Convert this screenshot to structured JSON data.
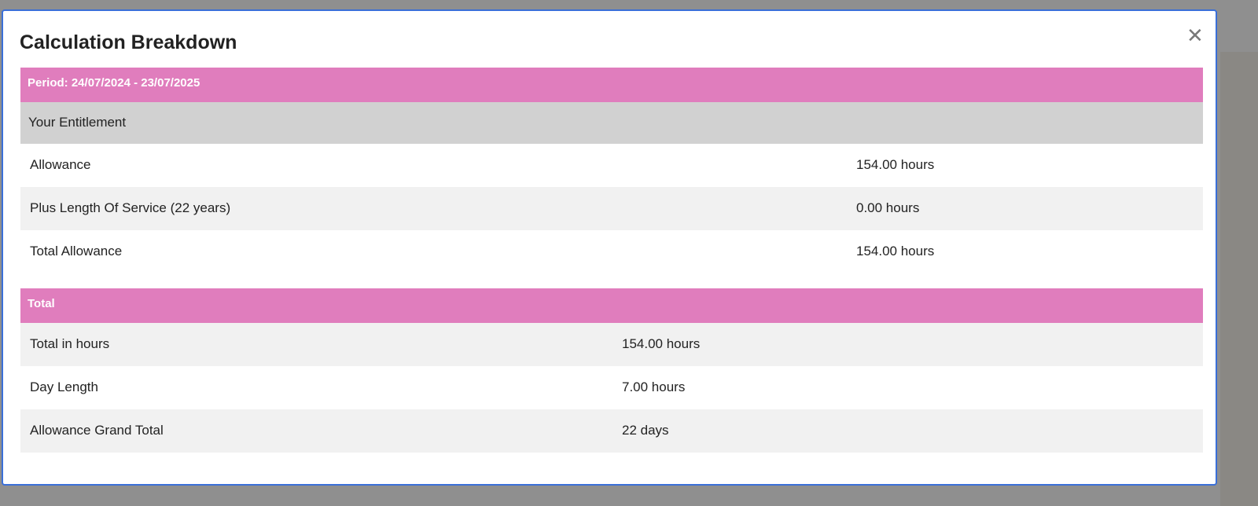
{
  "modal": {
    "title": "Calculation Breakdown",
    "close_icon": "close-icon"
  },
  "entitlement": {
    "period": "Period: 24/07/2024 - 23/07/2025",
    "section": "Your Entitlement",
    "rows": [
      {
        "label": "Allowance",
        "value": "154.00 hours"
      },
      {
        "label": "Plus Length Of Service (22 years)",
        "value": "0.00 hours"
      },
      {
        "label": "Total Allowance",
        "value": "154.00 hours"
      }
    ]
  },
  "total": {
    "header": "Total",
    "rows": [
      {
        "label": "Total in hours",
        "value": "154.00 hours"
      },
      {
        "label": "Day Length",
        "value": "7.00 hours"
      },
      {
        "label": "Allowance Grand Total",
        "value": "22 days"
      }
    ]
  },
  "colors": {
    "accent": "#e07dbd",
    "section": "#d1d1d1",
    "border": "#3a6fd8"
  }
}
